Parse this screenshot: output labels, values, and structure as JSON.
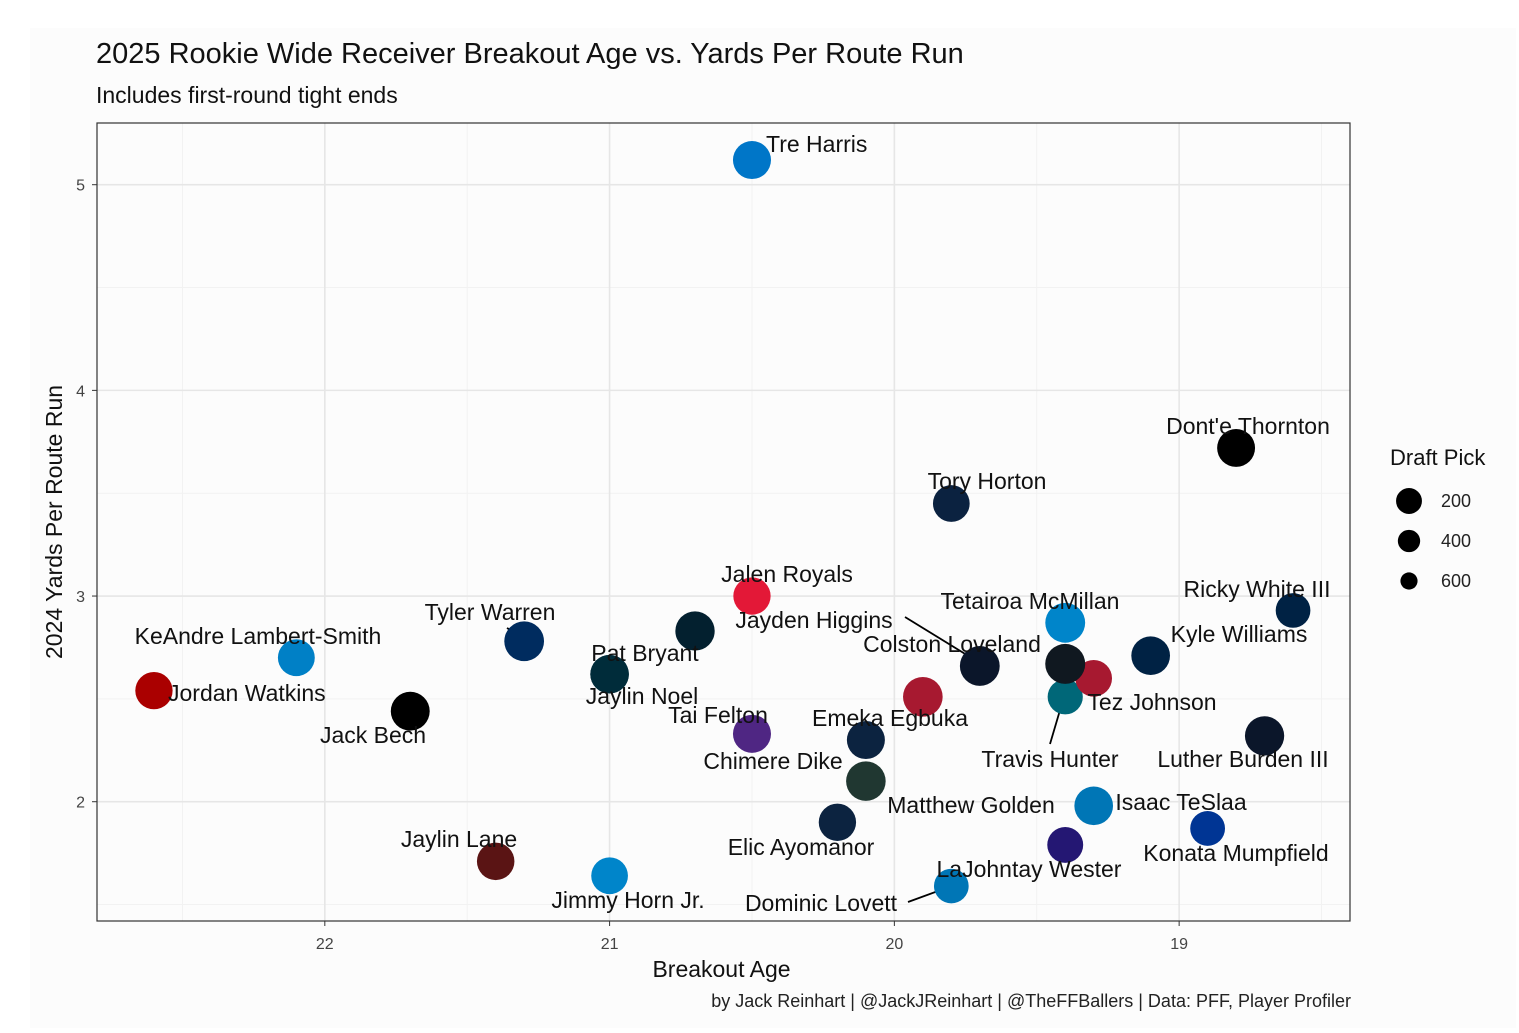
{
  "chart_data": {
    "type": "scatter",
    "title": "2025 Rookie Wide Receiver Breakout Age vs. Yards Per Route Run",
    "subtitle": "Includes first-round tight ends",
    "xlabel": "Breakout Age",
    "ylabel": "2024 Yards Per Route Run",
    "x_reversed": true,
    "xlim": [
      22.8,
      18.4
    ],
    "ylim": [
      1.42,
      5.3
    ],
    "x_ticks": [
      22,
      21,
      20,
      19
    ],
    "y_ticks": [
      2,
      3,
      4,
      5
    ],
    "grid": true,
    "caption": "by Jack Reinhart | @JackJReinhart | @TheFFBallers | Data: PFF, Player Profiler",
    "legend": {
      "title": "Draft Pick",
      "position": "right",
      "entries": [
        {
          "label": "200",
          "pick": 200
        },
        {
          "label": "400",
          "pick": 400
        },
        {
          "label": "600",
          "pick": 600
        }
      ]
    },
    "points": [
      {
        "name": "Tre Harris",
        "x": 20.5,
        "y": 5.12,
        "pick": 102,
        "color": "#0076c8",
        "label_pos": "upper-right"
      },
      {
        "name": "Dont'e Thornton",
        "x": 18.8,
        "y": 3.72,
        "pick": 108,
        "color": "#000000",
        "label_pos": "above"
      },
      {
        "name": "Tory Horton",
        "x": 19.8,
        "y": 3.45,
        "pick": 166,
        "color": "#0b2240",
        "label_pos": "above"
      },
      {
        "name": "Jalen Royals",
        "x": 20.5,
        "y": 3.0,
        "pick": 137,
        "color": "#e31837",
        "label_pos": "above"
      },
      {
        "name": "Ricky White III",
        "x": 18.6,
        "y": 2.93,
        "pick": 257,
        "color": "#002244",
        "label_pos": "above"
      },
      {
        "name": "Tetairoa McMillan",
        "x": 19.4,
        "y": 2.87,
        "pick": 8,
        "color": "#0085ca",
        "label_pos": "upper-left"
      },
      {
        "name": "Jayden Higgins",
        "x": 20.7,
        "y": 2.83,
        "pick": 34,
        "color": "#03202f",
        "label_pos": "lower-right"
      },
      {
        "name": "Tyler Warren",
        "x": 21.3,
        "y": 2.78,
        "pick": 14,
        "color": "#002c5f",
        "label_pos": "upper-left"
      },
      {
        "name": "Kyle Williams",
        "x": 19.1,
        "y": 2.71,
        "pick": 69,
        "color": "#002244",
        "label_pos": "upper-right"
      },
      {
        "name": "KeAndre Lambert-Smith",
        "x": 22.1,
        "y": 2.7,
        "pick": 158,
        "color": "#0080c6",
        "label_pos": "upper-left"
      },
      {
        "name": "Colston Loveland",
        "x": 19.7,
        "y": 2.66,
        "pick": 10,
        "color": "#0b162a",
        "label_pos": "upper-left"
      },
      {
        "name": "Travis Hunter",
        "x": 19.4,
        "y": 2.67,
        "pick": 2,
        "color": "#101820",
        "label_pos": "below"
      },
      {
        "name": "Pat Bryant",
        "x": 21.0,
        "y": 2.62,
        "pick": 74,
        "color": "#002c3a",
        "label_pos": "above"
      },
      {
        "name": "Jaylin Noel",
        "x": 21.0,
        "y": 2.62,
        "pick": 79,
        "color": "#03202f",
        "label_pos": "below"
      },
      {
        "name": "Jordan Watkins",
        "x": 22.6,
        "y": 2.54,
        "pick": 138,
        "color": "#aa0000",
        "label_pos": "right"
      },
      {
        "name": "Emeka Egbuka",
        "x": 19.9,
        "y": 2.51,
        "pick": 19,
        "color": "#a71930",
        "label_pos": "below"
      },
      {
        "name": "Tez Johnson",
        "x": 19.4,
        "y": 2.51,
        "pick": 235,
        "color": "#006778",
        "label_pos": "right"
      },
      {
        "name": "Jack Bech",
        "x": 21.7,
        "y": 2.44,
        "pick": 58,
        "color": "#000000",
        "label_pos": "below"
      },
      {
        "name": "Luther Burden III",
        "x": 18.7,
        "y": 2.32,
        "pick": 39,
        "color": "#0b162a",
        "label_pos": "below"
      },
      {
        "name": "Tai Felton",
        "x": 20.5,
        "y": 2.33,
        "pick": 102,
        "color": "#4f2683",
        "label_pos": "upper-left"
      },
      {
        "name": "Chimere Dike",
        "x": 20.1,
        "y": 2.3,
        "pick": 103,
        "color": "#0c2340",
        "label_pos": "lower-left"
      },
      {
        "name": "Matthew Golden",
        "x": 20.1,
        "y": 2.1,
        "pick": 23,
        "color": "#203731",
        "label_pos": "lower-right"
      },
      {
        "name": "Isaac TeSlaa",
        "x": 19.3,
        "y": 1.98,
        "pick": 70,
        "color": "#0076b6",
        "label_pos": "right"
      },
      {
        "name": "Elic Ayomanor",
        "x": 20.2,
        "y": 1.9,
        "pick": 136,
        "color": "#0c2340",
        "label_pos": "below"
      },
      {
        "name": "Konata Mumpfield",
        "x": 18.9,
        "y": 1.87,
        "pick": 252,
        "color": "#003594",
        "label_pos": "below"
      },
      {
        "name": "LaJohntay Wester",
        "x": 19.4,
        "y": 1.79,
        "pick": 203,
        "color": "#241773",
        "label_pos": "below"
      },
      {
        "name": "Jaylin Lane",
        "x": 21.4,
        "y": 1.71,
        "pick": 128,
        "color": "#5a1414",
        "label_pos": "above"
      },
      {
        "name": "Jimmy Horn Jr.",
        "x": 21.0,
        "y": 1.64,
        "pick": 166,
        "color": "#0085ca",
        "label_pos": "below"
      },
      {
        "name": "Dominic Lovett",
        "x": 19.8,
        "y": 1.59,
        "pick": 257,
        "color": "#0076b6",
        "label_pos": "lower-left"
      },
      {
        "name": "",
        "x": 19.3,
        "y": 2.6,
        "pick": 170,
        "color": "#a71930",
        "label_pos": "none"
      }
    ]
  }
}
